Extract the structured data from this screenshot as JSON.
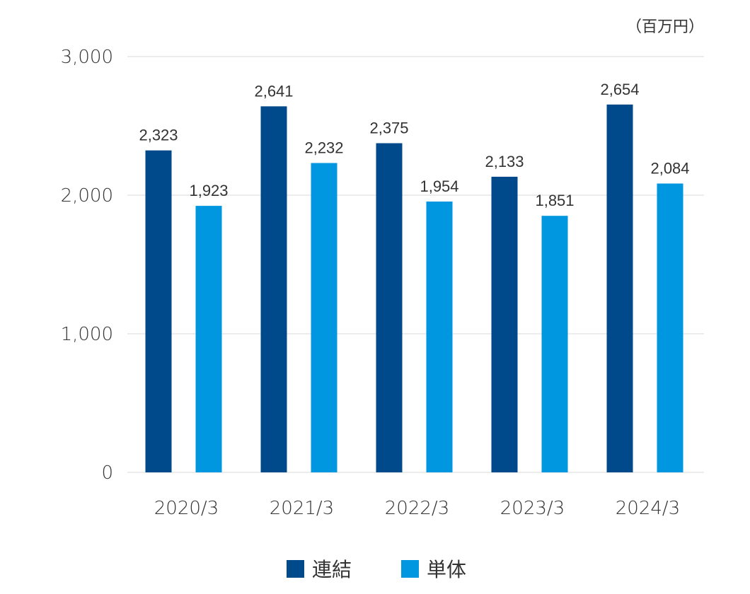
{
  "chart_data": {
    "type": "bar",
    "unit_label": "（百万円）",
    "categories": [
      "2020/3",
      "2021/3",
      "2022/3",
      "2023/3",
      "2024/3"
    ],
    "series": [
      {
        "name": "連結",
        "color": "#004a8c",
        "values": [
          2323,
          2641,
          2375,
          2133,
          2654
        ],
        "labels": [
          "2,323",
          "2,641",
          "2,375",
          "2,133",
          "2,654"
        ]
      },
      {
        "name": "単体",
        "color": "#0096e0",
        "values": [
          1923,
          2232,
          1954,
          1851,
          2084
        ],
        "labels": [
          "1,923",
          "2,232",
          "1,954",
          "1,851",
          "2,084"
        ]
      }
    ],
    "yticks": [
      0,
      1000,
      2000,
      3000
    ],
    "ytick_labels": [
      "0",
      "1,000",
      "2,000",
      "3,000"
    ],
    "ylim": [
      0,
      3000
    ],
    "grid": true,
    "legend_position": "bottom-center",
    "gridline_color": "#e6e6e6"
  }
}
